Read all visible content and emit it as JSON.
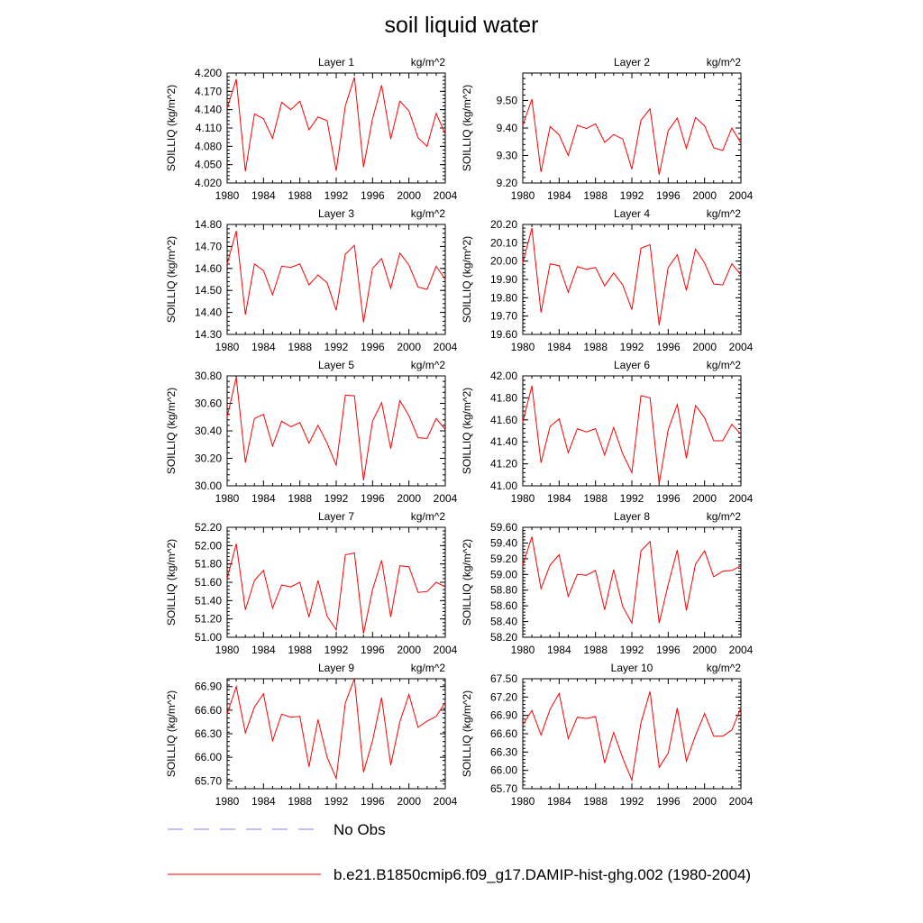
{
  "title": "soil liquid water",
  "legend": {
    "obs_label": "No Obs",
    "obs_color": "#8080ff",
    "model_label": "b.e21.B1850cmip6.f09_g17.DAMIP-hist-ghg.002 (1980-2004)",
    "model_color": "#ff0000"
  },
  "chart_data": [
    {
      "type": "line",
      "title": "Layer 1",
      "units": "kg/m^2",
      "ylabel": "SOILLIQ  (kg/m^2)",
      "xlim": [
        1980,
        2004
      ],
      "ylim": [
        4.02,
        4.2
      ],
      "xticks": [
        "1980",
        "1984",
        "1988",
        "1992",
        "1996",
        "2000",
        "2004"
      ],
      "yticks": [
        "4.020",
        "4.050",
        "4.080",
        "4.110",
        "4.140",
        "4.170",
        "4.200"
      ],
      "x": [
        1980,
        1981,
        1982,
        1983,
        1984,
        1985,
        1986,
        1987,
        1988,
        1989,
        1990,
        1991,
        1992,
        1993,
        1994,
        1995,
        1996,
        1997,
        1998,
        1999,
        2000,
        2001,
        2002,
        2003,
        2004
      ],
      "series": [
        {
          "values": [
            4.142,
            4.19,
            4.039,
            4.133,
            4.125,
            4.093,
            4.152,
            4.14,
            4.154,
            4.107,
            4.128,
            4.122,
            4.04,
            4.146,
            4.193,
            4.046,
            4.125,
            4.18,
            4.092,
            4.154,
            4.138,
            4.094,
            4.08,
            4.134,
            4.1
          ]
        }
      ]
    },
    {
      "type": "line",
      "title": "Layer 2",
      "units": "kg/m^2",
      "ylabel": "SOILLIQ  (kg/m^2)",
      "xlim": [
        1980,
        2004
      ],
      "ylim": [
        9.2,
        9.6
      ],
      "xticks": [
        "1980",
        "1984",
        "1988",
        "1992",
        "1996",
        "2000",
        "2004"
      ],
      "yticks": [
        "9.20",
        "9.30",
        "9.40",
        "9.50"
      ],
      "x": [
        1980,
        1981,
        1982,
        1983,
        1984,
        1985,
        1986,
        1987,
        1988,
        1989,
        1990,
        1991,
        1992,
        1993,
        1994,
        1995,
        1996,
        1997,
        1998,
        1999,
        2000,
        2001,
        2002,
        2003,
        2004
      ],
      "series": [
        {
          "values": [
            9.41,
            9.505,
            9.24,
            9.405,
            9.375,
            9.3,
            9.41,
            9.398,
            9.415,
            9.348,
            9.376,
            9.36,
            9.25,
            9.428,
            9.47,
            9.23,
            9.39,
            9.436,
            9.326,
            9.438,
            9.408,
            9.328,
            9.318,
            9.4,
            9.345
          ]
        }
      ]
    },
    {
      "type": "line",
      "title": "Layer 3",
      "units": "kg/m^2",
      "ylabel": "SOILLIQ  (kg/m^2)",
      "xlim": [
        1980,
        2004
      ],
      "ylim": [
        14.3,
        14.8
      ],
      "xticks": [
        "1980",
        "1984",
        "1988",
        "1992",
        "1996",
        "2000",
        "2004"
      ],
      "yticks": [
        "14.30",
        "14.40",
        "14.50",
        "14.60",
        "14.70",
        "14.80"
      ],
      "x": [
        1980,
        1981,
        1982,
        1983,
        1984,
        1985,
        1986,
        1987,
        1988,
        1989,
        1990,
        1991,
        1992,
        1993,
        1994,
        1995,
        1996,
        1997,
        1998,
        1999,
        2000,
        2001,
        2002,
        2003,
        2004
      ],
      "series": [
        {
          "values": [
            14.62,
            14.77,
            14.39,
            14.62,
            14.59,
            14.48,
            14.61,
            14.605,
            14.62,
            14.525,
            14.57,
            14.535,
            14.41,
            14.665,
            14.705,
            14.355,
            14.6,
            14.645,
            14.51,
            14.67,
            14.615,
            14.515,
            14.505,
            14.61,
            14.55
          ]
        }
      ]
    },
    {
      "type": "line",
      "title": "Layer 4",
      "units": "kg/m^2",
      "ylabel": "SOILLIQ  (kg/m^2)",
      "xlim": [
        1980,
        2004
      ],
      "ylim": [
        19.6,
        20.2
      ],
      "xticks": [
        "1980",
        "1984",
        "1988",
        "1992",
        "1996",
        "2000",
        "2004"
      ],
      "yticks": [
        "19.60",
        "19.70",
        "19.80",
        "19.90",
        "20.00",
        "20.10",
        "20.20"
      ],
      "x": [
        1980,
        1981,
        1982,
        1983,
        1984,
        1985,
        1986,
        1987,
        1988,
        1989,
        1990,
        1991,
        1992,
        1993,
        1994,
        1995,
        1996,
        1997,
        1998,
        1999,
        2000,
        2001,
        2002,
        2003,
        2004
      ],
      "series": [
        {
          "values": [
            19.99,
            20.18,
            19.72,
            19.985,
            19.975,
            19.83,
            19.97,
            19.955,
            19.965,
            19.865,
            19.935,
            19.87,
            19.735,
            20.07,
            20.09,
            19.65,
            19.965,
            20.035,
            19.84,
            20.065,
            19.99,
            19.875,
            19.87,
            19.985,
            19.925
          ]
        }
      ]
    },
    {
      "type": "line",
      "title": "Layer 5",
      "units": "kg/m^2",
      "ylabel": "SOILLIQ  (kg/m^2)",
      "xlim": [
        1980,
        2004
      ],
      "ylim": [
        30.0,
        30.8
      ],
      "xticks": [
        "1980",
        "1984",
        "1988",
        "1992",
        "1996",
        "2000",
        "2004"
      ],
      "yticks": [
        "30.00",
        "30.20",
        "30.40",
        "30.60",
        "30.80"
      ],
      "x": [
        1980,
        1981,
        1982,
        1983,
        1984,
        1985,
        1986,
        1987,
        1988,
        1989,
        1990,
        1991,
        1992,
        1993,
        1994,
        1995,
        1996,
        1997,
        1998,
        1999,
        2000,
        2001,
        2002,
        2003,
        2004
      ],
      "series": [
        {
          "values": [
            30.5,
            30.79,
            30.17,
            30.49,
            30.52,
            30.29,
            30.47,
            30.43,
            30.46,
            30.31,
            30.44,
            30.31,
            30.15,
            30.66,
            30.655,
            30.04,
            30.47,
            30.605,
            30.27,
            30.62,
            30.51,
            30.35,
            30.345,
            30.49,
            30.41
          ]
        }
      ]
    },
    {
      "type": "line",
      "title": "Layer 6",
      "units": "kg/m^2",
      "ylabel": "SOILLIQ  (kg/m^2)",
      "xlim": [
        1980,
        2004
      ],
      "ylim": [
        41.0,
        42.0
      ],
      "xticks": [
        "1980",
        "1984",
        "1988",
        "1992",
        "1996",
        "2000",
        "2004"
      ],
      "yticks": [
        "41.00",
        "41.20",
        "41.40",
        "41.60",
        "41.80",
        "42.00"
      ],
      "x": [
        1980,
        1981,
        1982,
        1983,
        1984,
        1985,
        1986,
        1987,
        1988,
        1989,
        1990,
        1991,
        1992,
        1993,
        1994,
        1995,
        1996,
        1997,
        1998,
        1999,
        2000,
        2001,
        2002,
        2003,
        2004
      ],
      "series": [
        {
          "values": [
            41.58,
            41.91,
            41.21,
            41.54,
            41.61,
            41.3,
            41.52,
            41.49,
            41.52,
            41.28,
            41.53,
            41.29,
            41.12,
            41.82,
            41.8,
            41.02,
            41.51,
            41.74,
            41.25,
            41.73,
            41.62,
            41.41,
            41.41,
            41.56,
            41.47
          ]
        }
      ]
    },
    {
      "type": "line",
      "title": "Layer 7",
      "units": "kg/m^2",
      "ylabel": "SOILLIQ  (kg/m^2)",
      "xlim": [
        1980,
        2004
      ],
      "ylim": [
        51.0,
        52.2
      ],
      "xticks": [
        "1980",
        "1984",
        "1988",
        "1992",
        "1996",
        "2000",
        "2004"
      ],
      "yticks": [
        "51.00",
        "51.20",
        "51.40",
        "51.60",
        "51.80",
        "52.00",
        "52.20"
      ],
      "x": [
        1980,
        1981,
        1982,
        1983,
        1984,
        1985,
        1986,
        1987,
        1988,
        1989,
        1990,
        1991,
        1992,
        1993,
        1994,
        1995,
        1996,
        1997,
        1998,
        1999,
        2000,
        2001,
        2002,
        2003,
        2004
      ],
      "series": [
        {
          "values": [
            51.64,
            52.02,
            51.3,
            51.62,
            51.73,
            51.32,
            51.57,
            51.55,
            51.6,
            51.22,
            51.62,
            51.23,
            51.08,
            51.9,
            51.92,
            51.04,
            51.52,
            51.84,
            51.22,
            51.78,
            51.77,
            51.49,
            51.5,
            51.6,
            51.55
          ]
        }
      ]
    },
    {
      "type": "line",
      "title": "Layer 8",
      "units": "kg/m^2",
      "ylabel": "SOILLIQ  (kg/m^2)",
      "xlim": [
        1980,
        2004
      ],
      "ylim": [
        58.2,
        59.6
      ],
      "xticks": [
        "1980",
        "1984",
        "1988",
        "1992",
        "1996",
        "2000",
        "2004"
      ],
      "yticks": [
        "58.20",
        "58.40",
        "58.60",
        "58.80",
        "59.00",
        "59.20",
        "59.40",
        "59.60"
      ],
      "x": [
        1980,
        1981,
        1982,
        1983,
        1984,
        1985,
        1986,
        1987,
        1988,
        1989,
        1990,
        1991,
        1992,
        1993,
        1994,
        1995,
        1996,
        1997,
        1998,
        1999,
        2000,
        2001,
        2002,
        2003,
        2004
      ],
      "series": [
        {
          "values": [
            59.12,
            59.48,
            58.82,
            59.12,
            59.25,
            58.72,
            59.0,
            58.99,
            59.05,
            58.55,
            59.06,
            58.59,
            58.38,
            59.3,
            59.42,
            58.38,
            58.87,
            59.31,
            58.54,
            59.13,
            59.3,
            58.97,
            59.04,
            59.05,
            59.11
          ]
        }
      ]
    },
    {
      "type": "line",
      "title": "Layer 9",
      "units": "kg/m^2",
      "ylabel": "SOILLIQ  (kg/m^2)",
      "xlim": [
        1980,
        2004
      ],
      "ylim": [
        65.6,
        67.0
      ],
      "xticks": [
        "1980",
        "1984",
        "1988",
        "1992",
        "1996",
        "2000",
        "2004"
      ],
      "yticks": [
        "65.70",
        "66.00",
        "66.30",
        "66.60",
        "66.90"
      ],
      "x": [
        1980,
        1981,
        1982,
        1983,
        1984,
        1985,
        1986,
        1987,
        1988,
        1989,
        1990,
        1991,
        1992,
        1993,
        1994,
        1995,
        1996,
        1997,
        1998,
        1999,
        2000,
        2001,
        2002,
        2003,
        2004
      ],
      "series": [
        {
          "values": [
            66.55,
            66.9,
            66.31,
            66.64,
            66.81,
            66.21,
            66.55,
            66.51,
            66.52,
            65.88,
            66.48,
            66.0,
            65.73,
            66.69,
            67.0,
            65.81,
            66.21,
            66.76,
            65.9,
            66.45,
            66.8,
            66.38,
            66.46,
            66.52,
            66.7
          ]
        }
      ]
    },
    {
      "type": "line",
      "title": "Layer 10",
      "units": "kg/m^2",
      "ylabel": "SOILLIQ  (kg/m^2)",
      "xlim": [
        1980,
        2004
      ],
      "ylim": [
        65.7,
        67.5
      ],
      "xticks": [
        "1980",
        "1984",
        "1988",
        "1992",
        "1996",
        "2000",
        "2004"
      ],
      "yticks": [
        "65.70",
        "66.00",
        "66.30",
        "66.60",
        "66.90",
        "67.20",
        "67.50"
      ],
      "x": [
        1980,
        1981,
        1982,
        1983,
        1984,
        1985,
        1986,
        1987,
        1988,
        1989,
        1990,
        1991,
        1992,
        1993,
        1994,
        1995,
        1996,
        1997,
        1998,
        1999,
        2000,
        2001,
        2002,
        2003,
        2004
      ],
      "series": [
        {
          "values": [
            66.75,
            66.98,
            66.58,
            67.0,
            67.26,
            66.52,
            66.87,
            66.85,
            66.88,
            66.12,
            66.62,
            66.2,
            65.84,
            66.78,
            67.29,
            66.05,
            66.28,
            67.02,
            66.15,
            66.57,
            66.93,
            66.56,
            66.56,
            66.66,
            67.02
          ]
        }
      ]
    }
  ]
}
